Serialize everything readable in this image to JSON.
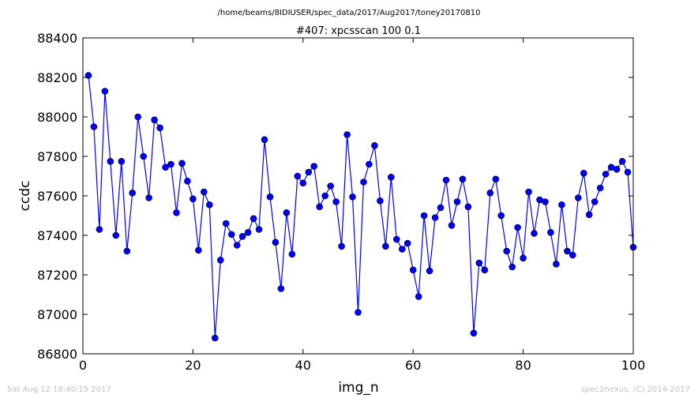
{
  "chart_data": {
    "type": "line",
    "suptitle": "/home/beams/8IDIUSER/spec_data/2017/Aug2017/toney20170810",
    "title": "#407: xpcsscan 100 0.1",
    "xlabel": "img_n",
    "ylabel": "ccdc",
    "xlim": [
      0,
      100
    ],
    "ylim": [
      86800,
      88400
    ],
    "xticks": [
      0,
      20,
      40,
      60,
      80,
      100
    ],
    "yticks": [
      86800,
      87000,
      87200,
      87400,
      87600,
      87800,
      88000,
      88200,
      88400
    ],
    "grid": false,
    "line_color": "#0000ff",
    "marker": "circle",
    "x": [
      1,
      2,
      3,
      4,
      5,
      6,
      7,
      8,
      9,
      10,
      11,
      12,
      13,
      14,
      15,
      16,
      17,
      18,
      19,
      20,
      21,
      22,
      23,
      24,
      25,
      26,
      27,
      28,
      29,
      30,
      31,
      32,
      33,
      34,
      35,
      36,
      37,
      38,
      39,
      40,
      41,
      42,
      43,
      44,
      45,
      46,
      47,
      48,
      49,
      50,
      51,
      52,
      53,
      54,
      55,
      56,
      57,
      58,
      59,
      60,
      61,
      62,
      63,
      64,
      65,
      66,
      67,
      68,
      69,
      70,
      71,
      72,
      73,
      74,
      75,
      76,
      77,
      78,
      79,
      80,
      81,
      82,
      83,
      84,
      85,
      86,
      87,
      88,
      89,
      90,
      91,
      92,
      93,
      94,
      95,
      96,
      97,
      98,
      99,
      100
    ],
    "y": [
      88210,
      87950,
      87430,
      88130,
      87775,
      87400,
      87775,
      87320,
      87615,
      88000,
      87800,
      87590,
      87985,
      87945,
      87745,
      87760,
      87515,
      87765,
      87675,
      87585,
      87325,
      87620,
      87555,
      86880,
      87275,
      87460,
      87405,
      87350,
      87395,
      87415,
      87485,
      87430,
      87885,
      87595,
      87365,
      87130,
      87515,
      87305,
      87700,
      87665,
      87720,
      87750,
      87545,
      87600,
      87650,
      87570,
      87345,
      87910,
      87595,
      87010,
      87670,
      87760,
      87855,
      87575,
      87345,
      87695,
      87380,
      87330,
      87360,
      87225,
      87090,
      87500,
      87220,
      87490,
      87540,
      87680,
      87450,
      87570,
      87685,
      87545,
      86905,
      87260,
      87225,
      87615,
      87685,
      87500,
      87320,
      87240,
      87440,
      87285,
      87620,
      87410,
      87580,
      87570,
      87415,
      87255,
      87555,
      87320,
      87300,
      87590,
      87715,
      87505,
      87570,
      87640,
      87710,
      87745,
      87735,
      87775,
      87720,
      87340
    ]
  },
  "footer": {
    "left": "Sat Aug 12 18:40:15 2017",
    "right": "spec2nexus, (C) 2014-2017"
  }
}
